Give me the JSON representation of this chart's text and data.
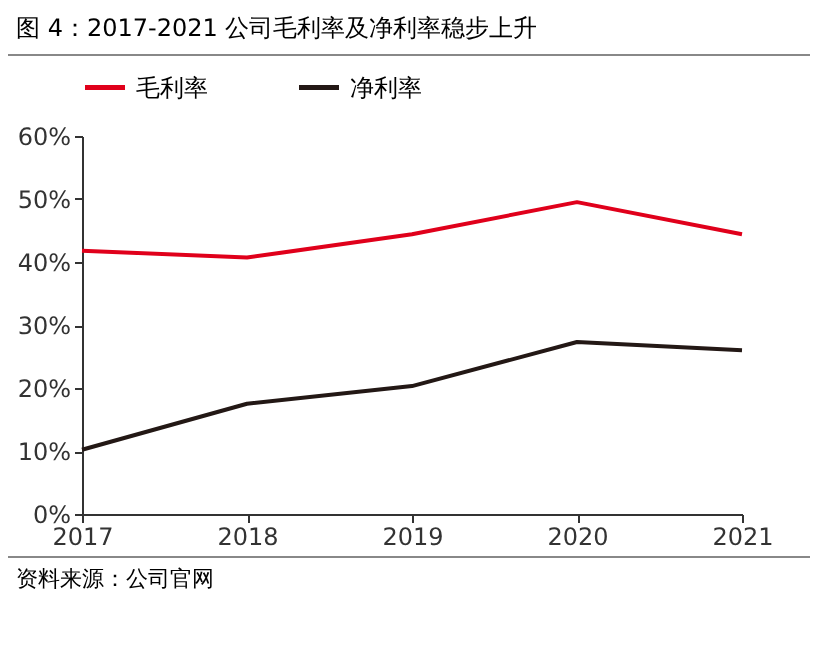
{
  "chart_data": {
    "type": "line",
    "title": "图 4：2017-2021 公司毛利率及净利率稳步上升",
    "annotations": [
      "资料来源：公司官网"
    ],
    "x": [
      2017,
      2018,
      2019,
      2020,
      2021
    ],
    "series": [
      {
        "name": "毛利率",
        "color": "#e0001b",
        "values": [
          41.8,
          40.7,
          44.4,
          49.5,
          44.4
        ]
      },
      {
        "name": "净利率",
        "color": "#231815",
        "values": [
          10.2,
          17.5,
          20.3,
          27.3,
          26.0
        ]
      }
    ],
    "xlim": [
      2017,
      2021
    ],
    "xticks": [
      2017,
      2018,
      2019,
      2020,
      2021
    ],
    "ylim": [
      0,
      60
    ],
    "yticks": [
      {
        "value": 0,
        "label": "0%"
      },
      {
        "value": 10,
        "label": "10%"
      },
      {
        "value": 20,
        "label": "20%"
      },
      {
        "value": 30,
        "label": "30%"
      },
      {
        "value": 40,
        "label": "40%"
      },
      {
        "value": 50,
        "label": "50%"
      },
      {
        "value": 60,
        "label": "60%"
      }
    ],
    "grid": false,
    "legend": "top",
    "marker": "none",
    "line_style": "solid"
  }
}
